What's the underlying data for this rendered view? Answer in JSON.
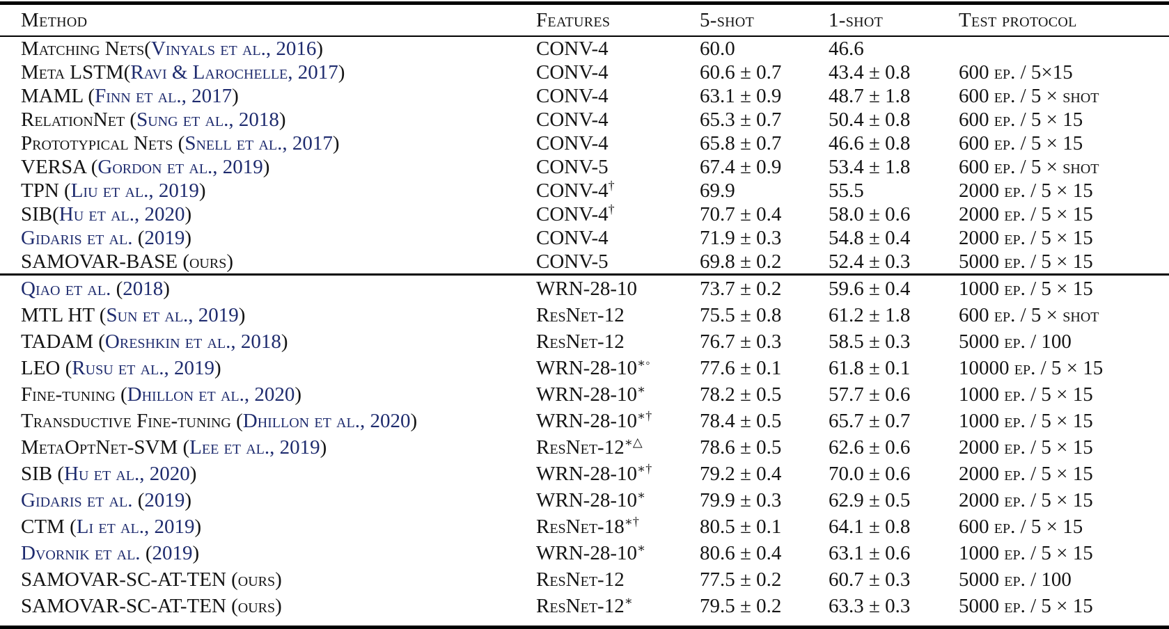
{
  "colors": {
    "text": "#141414",
    "citation_link": "#1e2b6e",
    "rule": "#000000",
    "background": "#ffffff"
  },
  "header": {
    "method": "Method",
    "features": "Features",
    "five_shot": "5-shot",
    "one_shot": "1-shot",
    "protocol": "Test protocol"
  },
  "sections": [
    {
      "rows": [
        {
          "method": [
            {
              "t": "Matching Nets(",
              "link": false
            },
            {
              "t": "Vinyals et al., 2016",
              "link": true
            },
            {
              "t": ")",
              "link": false
            }
          ],
          "features": {
            "name": "CONV-4",
            "sup": ""
          },
          "five": "60.0",
          "one": "46.6",
          "protocol": ""
        },
        {
          "method": [
            {
              "t": "Meta LSTM(",
              "link": false
            },
            {
              "t": "Ravi & Larochelle, 2017",
              "link": true
            },
            {
              "t": ")",
              "link": false
            }
          ],
          "features": {
            "name": "CONV-4",
            "sup": ""
          },
          "five": "60.6 ± 0.7",
          "one": "43.4 ± 0.8",
          "protocol": "600 ep. / 5×15"
        },
        {
          "method": [
            {
              "t": "MAML (",
              "link": false
            },
            {
              "t": "Finn et al., 2017",
              "link": true
            },
            {
              "t": ")",
              "link": false
            }
          ],
          "features": {
            "name": "CONV-4",
            "sup": ""
          },
          "five": "63.1 ± 0.9",
          "one": "48.7 ± 1.8",
          "protocol": "600 ep. / 5 × shot"
        },
        {
          "method": [
            {
              "t": "RelationNet (",
              "link": false
            },
            {
              "t": "Sung et al., 2018",
              "link": true
            },
            {
              "t": ")",
              "link": false
            }
          ],
          "features": {
            "name": "CONV-4",
            "sup": ""
          },
          "five": "65.3 ± 0.7",
          "one": "50.4 ± 0.8",
          "protocol": "600 ep. / 5 × 15"
        },
        {
          "method": [
            {
              "t": "Prototypical Nets (",
              "link": false
            },
            {
              "t": "Snell et al., 2017",
              "link": true
            },
            {
              "t": ")",
              "link": false
            }
          ],
          "features": {
            "name": "CONV-4",
            "sup": ""
          },
          "five": "65.8 ± 0.7",
          "one": "46.6 ± 0.8",
          "protocol": "600 ep. / 5 × 15"
        },
        {
          "method": [
            {
              "t": "VERSA (",
              "link": false
            },
            {
              "t": "Gordon et al., 2019",
              "link": true
            },
            {
              "t": ")",
              "link": false
            }
          ],
          "features": {
            "name": "CONV-5",
            "sup": ""
          },
          "five": "67.4 ± 0.9",
          "one": "53.4 ± 1.8",
          "protocol": "600 ep. / 5 × shot"
        },
        {
          "method": [
            {
              "t": "TPN (",
              "link": false
            },
            {
              "t": "Liu et al., 2019",
              "link": true
            },
            {
              "t": ")",
              "link": false
            }
          ],
          "features": {
            "name": "CONV-4",
            "sup": "†"
          },
          "five": "69.9",
          "one": "55.5",
          "protocol": "2000 ep. / 5 × 15"
        },
        {
          "method": [
            {
              "t": "SIB(",
              "link": false
            },
            {
              "t": "Hu et al., 2020",
              "link": true
            },
            {
              "t": ")",
              "link": false
            }
          ],
          "features": {
            "name": "CONV-4",
            "sup": "†"
          },
          "five": "70.7 ± 0.4",
          "one": "58.0 ± 0.6",
          "protocol": "2000 ep. / 5 × 15"
        },
        {
          "method": [
            {
              "t": "Gidaris et al.",
              "link": true
            },
            {
              "t": " (",
              "link": false
            },
            {
              "t": "2019",
              "link": true
            },
            {
              "t": ")",
              "link": false
            }
          ],
          "features": {
            "name": "CONV-4",
            "sup": ""
          },
          "five": "71.9 ± 0.3",
          "one": "54.8 ± 0.4",
          "protocol": "2000 ep. / 5 × 15"
        },
        {
          "method": [
            {
              "t": "SAMOVAR-BASE (ours)",
              "link": false
            }
          ],
          "features": {
            "name": "CONV-5",
            "sup": ""
          },
          "five": "69.8 ± 0.2",
          "one": "52.4 ± 0.3",
          "protocol": "5000 ep. / 5 × 15"
        }
      ]
    },
    {
      "rows": [
        {
          "method": [
            {
              "t": "Qiao et al.",
              "link": true
            },
            {
              "t": " (",
              "link": false
            },
            {
              "t": "2018",
              "link": true
            },
            {
              "t": ")",
              "link": false
            }
          ],
          "features": {
            "name": "WRN-28-10",
            "sup": ""
          },
          "five": "73.7 ± 0.2",
          "one": "59.6 ± 0.4",
          "protocol": "1000 ep. / 5 × 15"
        },
        {
          "method": [
            {
              "t": "MTL HT (",
              "link": false
            },
            {
              "t": "Sun et al., 2019",
              "link": true
            },
            {
              "t": ")",
              "link": false
            }
          ],
          "features": {
            "name": "ResNet-12",
            "sup": ""
          },
          "five": "75.5 ± 0.8",
          "one": "61.2 ± 1.8",
          "protocol": "600 ep. / 5 × shot"
        },
        {
          "method": [
            {
              "t": "TADAM (",
              "link": false
            },
            {
              "t": "Oreshkin et al., 2018",
              "link": true
            },
            {
              "t": ")",
              "link": false
            }
          ],
          "features": {
            "name": "ResNet-12",
            "sup": ""
          },
          "five": "76.7 ± 0.3",
          "one": "58.5 ± 0.3",
          "protocol": "5000 ep. / 100"
        },
        {
          "method": [
            {
              "t": "LEO (",
              "link": false
            },
            {
              "t": "Rusu et al., 2019",
              "link": true
            },
            {
              "t": ")",
              "link": false
            }
          ],
          "features": {
            "name": "WRN-28-10",
            "sup": "∗◦"
          },
          "five": "77.6 ± 0.1",
          "one": "61.8 ± 0.1",
          "protocol": "10000 ep. / 5 × 15"
        },
        {
          "method": [
            {
              "t": "Fine-tuning (",
              "link": false
            },
            {
              "t": "Dhillon et al., 2020",
              "link": true
            },
            {
              "t": ")",
              "link": false
            }
          ],
          "features": {
            "name": "WRN-28-10",
            "sup": "∗"
          },
          "five": "78.2 ± 0.5",
          "one": "57.7 ± 0.6",
          "protocol": "1000 ep. / 5 × 15"
        },
        {
          "method": [
            {
              "t": "Transductive Fine-tuning (",
              "link": false
            },
            {
              "t": "Dhillon et al., 2020",
              "link": true
            },
            {
              "t": ")",
              "link": false
            }
          ],
          "features": {
            "name": "WRN-28-10",
            "sup": "∗†"
          },
          "five": "78.4 ± 0.5",
          "one": "65.7 ± 0.7",
          "protocol": "1000 ep. / 5 × 15"
        },
        {
          "method": [
            {
              "t": "MetaOptNet-SVM (",
              "link": false
            },
            {
              "t": "Lee et al., 2019",
              "link": true
            },
            {
              "t": ")",
              "link": false
            }
          ],
          "features": {
            "name": "ResNet-12",
            "sup": "∗△"
          },
          "five": "78.6 ± 0.5",
          "one": "62.6 ± 0.6",
          "protocol": "2000 ep. / 5 × 15"
        },
        {
          "method": [
            {
              "t": "SIB (",
              "link": false
            },
            {
              "t": "Hu et al., 2020",
              "link": true
            },
            {
              "t": ")",
              "link": false
            }
          ],
          "features": {
            "name": "WRN-28-10",
            "sup": "∗†"
          },
          "five": "79.2 ± 0.4",
          "one": "70.0 ± 0.6",
          "protocol": "2000 ep. / 5 × 15"
        },
        {
          "method": [
            {
              "t": "Gidaris et al.",
              "link": true
            },
            {
              "t": " (",
              "link": false
            },
            {
              "t": "2019",
              "link": true
            },
            {
              "t": ")",
              "link": false
            }
          ],
          "features": {
            "name": "WRN-28-10",
            "sup": "∗"
          },
          "five": "79.9 ± 0.3",
          "one": "62.9 ± 0.5",
          "protocol": "2000 ep. / 5 × 15"
        },
        {
          "method": [
            {
              "t": "CTM (",
              "link": false
            },
            {
              "t": "Li et al., 2019",
              "link": true
            },
            {
              "t": ")",
              "link": false
            }
          ],
          "features": {
            "name": "ResNet-18",
            "sup": "∗†"
          },
          "five": "80.5 ± 0.1",
          "one": "64.1 ± 0.8",
          "protocol": "600 ep. / 5 × 15"
        },
        {
          "method": [
            {
              "t": "Dvornik et al.",
              "link": true
            },
            {
              "t": " (",
              "link": false
            },
            {
              "t": "2019",
              "link": true
            },
            {
              "t": ")",
              "link": false
            }
          ],
          "features": {
            "name": "WRN-28-10",
            "sup": "∗"
          },
          "five": "80.6 ± 0.4",
          "one": "63.1 ± 0.6",
          "protocol": "1000 ep. / 5 × 15"
        },
        {
          "method": [
            {
              "t": "SAMOVAR-SC-AT-TEN (ours)",
              "link": false
            }
          ],
          "features": {
            "name": "ResNet-12",
            "sup": ""
          },
          "five": "77.5 ± 0.2",
          "one": "60.7 ± 0.3",
          "protocol": "5000 ep. / 100"
        },
        {
          "method": [
            {
              "t": "SAMOVAR-SC-AT-TEN (ours)",
              "link": false
            }
          ],
          "features": {
            "name": "ResNet-12",
            "sup": "∗"
          },
          "five": "79.5 ± 0.2",
          "one": "63.3 ± 0.3",
          "protocol": "5000 ep. / 5 × 15"
        }
      ]
    }
  ]
}
